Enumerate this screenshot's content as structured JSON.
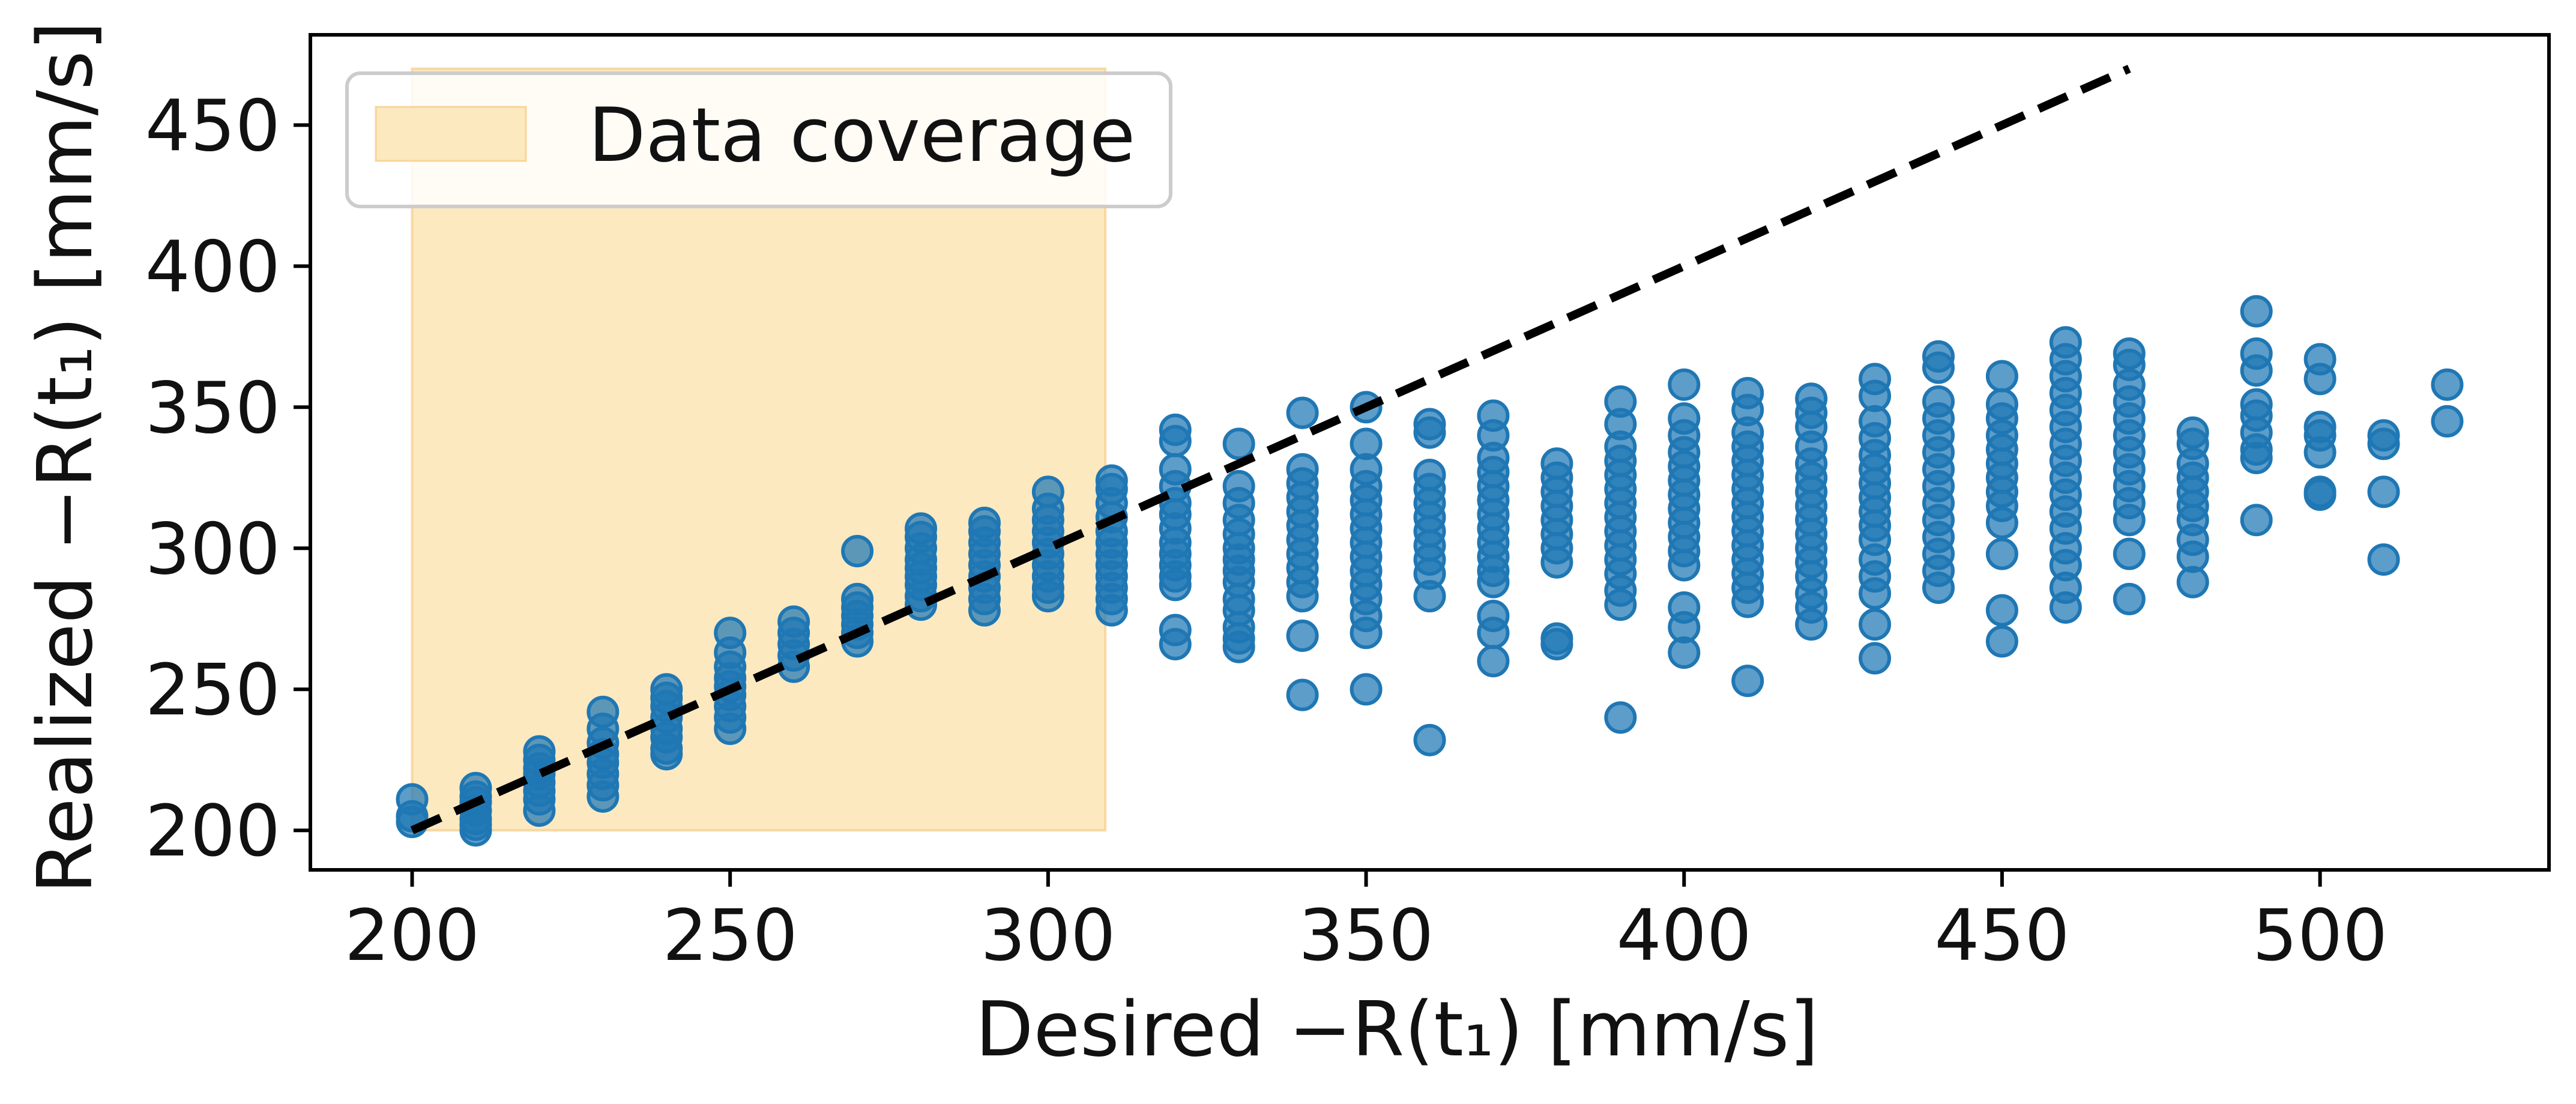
{
  "chart_data": {
    "type": "scatter",
    "xlabel": "Desired −R(t₁) [mm/s]",
    "ylabel": "Realized −R(t₁) [mm/s]",
    "xlim": [
      184,
      536
    ],
    "ylim": [
      186,
      482
    ],
    "xticks": [
      {
        "value": 200,
        "label": "200"
      },
      {
        "value": 250,
        "label": "250"
      },
      {
        "value": 300,
        "label": "300"
      },
      {
        "value": 350,
        "label": "350"
      },
      {
        "value": 400,
        "label": "400"
      },
      {
        "value": 450,
        "label": "450"
      },
      {
        "value": 500,
        "label": "500"
      }
    ],
    "yticks": [
      {
        "value": 200,
        "label": "200"
      },
      {
        "value": 250,
        "label": "250"
      },
      {
        "value": 300,
        "label": "300"
      },
      {
        "value": 350,
        "label": "350"
      },
      {
        "value": 400,
        "label": "400"
      },
      {
        "value": 450,
        "label": "450"
      }
    ],
    "grid": false,
    "legend": {
      "position": "top-left",
      "entries": [
        {
          "label": "Data coverage",
          "color": "#fde9c0"
        }
      ]
    },
    "coverage_region": {
      "x": [
        200,
        309
      ],
      "y": [
        200,
        470
      ],
      "color": "#fde9c0",
      "label": "Data coverage"
    },
    "reference_line": {
      "x": [
        200,
        470
      ],
      "y": [
        200,
        470
      ],
      "style": "dashed",
      "color": "#000000"
    },
    "scatter_color": "#1f77b4",
    "points": [
      {
        "x": 200,
        "ys": [
          211,
          205,
          203
        ]
      },
      {
        "x": 210,
        "ys": [
          215,
          212,
          210,
          207,
          204,
          202,
          200
        ]
      },
      {
        "x": 220,
        "ys": [
          228,
          225,
          222,
          220,
          217,
          214,
          211,
          207
        ]
      },
      {
        "x": 230,
        "ys": [
          242,
          236,
          231,
          227,
          224,
          220,
          216,
          212
        ]
      },
      {
        "x": 240,
        "ys": [
          250,
          247,
          244,
          240,
          236,
          233,
          229,
          227
        ]
      },
      {
        "x": 250,
        "ys": [
          270,
          263,
          258,
          254,
          251,
          248,
          244,
          240,
          236
        ]
      },
      {
        "x": 260,
        "ys": [
          274,
          270,
          266,
          262,
          258
        ]
      },
      {
        "x": 270,
        "ys": [
          299,
          282,
          279,
          276,
          273,
          270,
          267
        ]
      },
      {
        "x": 280,
        "ys": [
          307,
          304,
          300,
          296,
          293,
          290,
          287,
          283,
          280
        ]
      },
      {
        "x": 290,
        "ys": [
          309,
          306,
          302,
          298,
          294,
          290,
          286,
          282,
          278
        ]
      },
      {
        "x": 300,
        "ys": [
          320,
          314,
          310,
          306,
          302,
          298,
          294,
          290,
          286,
          283
        ]
      },
      {
        "x": 310,
        "ys": [
          324,
          321,
          316,
          311,
          306,
          302,
          298,
          294,
          290,
          286,
          282,
          278
        ]
      },
      {
        "x": 320,
        "ys": [
          342,
          338,
          328,
          322,
          316,
          312,
          307,
          302,
          298,
          294,
          290,
          287,
          271,
          266
        ]
      },
      {
        "x": 330,
        "ys": [
          337,
          322,
          316,
          310,
          305,
          300,
          296,
          292,
          288,
          282,
          278,
          272,
          268,
          265
        ]
      },
      {
        "x": 340,
        "ys": [
          348,
          328,
          323,
          318,
          313,
          308,
          303,
          298,
          293,
          288,
          283,
          269,
          248
        ]
      },
      {
        "x": 350,
        "ys": [
          350,
          337,
          328,
          322,
          317,
          312,
          307,
          302,
          297,
          292,
          287,
          282,
          276,
          270,
          250
        ]
      },
      {
        "x": 360,
        "ys": [
          344,
          341,
          326,
          321,
          316,
          311,
          306,
          301,
          296,
          291,
          283,
          232
        ]
      },
      {
        "x": 370,
        "ys": [
          347,
          340,
          332,
          327,
          322,
          317,
          312,
          307,
          302,
          297,
          292,
          288,
          276,
          270,
          260
        ]
      },
      {
        "x": 380,
        "ys": [
          330,
          325,
          320,
          315,
          310,
          305,
          300,
          295,
          268,
          266
        ]
      },
      {
        "x": 390,
        "ys": [
          352,
          344,
          336,
          331,
          326,
          321,
          316,
          311,
          306,
          301,
          296,
          291,
          285,
          280,
          240
        ]
      },
      {
        "x": 400,
        "ys": [
          358,
          346,
          340,
          334,
          329,
          324,
          319,
          314,
          309,
          304,
          299,
          294,
          279,
          272,
          263
        ]
      },
      {
        "x": 410,
        "ys": [
          355,
          349,
          341,
          336,
          331,
          326,
          321,
          316,
          311,
          306,
          301,
          296,
          291,
          286,
          281,
          253
        ]
      },
      {
        "x": 420,
        "ys": [
          353,
          348,
          343,
          336,
          330,
          325,
          320,
          315,
          310,
          305,
          300,
          295,
          290,
          284,
          279,
          273
        ]
      },
      {
        "x": 430,
        "ys": [
          360,
          354,
          345,
          339,
          333,
          328,
          323,
          318,
          313,
          308,
          303,
          296,
          290,
          284,
          273,
          261
        ]
      },
      {
        "x": 440,
        "ys": [
          368,
          364,
          352,
          346,
          340,
          334,
          328,
          322,
          316,
          310,
          304,
          298,
          292,
          286
        ]
      },
      {
        "x": 450,
        "ys": [
          361,
          351,
          346,
          340,
          335,
          330,
          325,
          320,
          315,
          309,
          298,
          278,
          267
        ]
      },
      {
        "x": 460,
        "ys": [
          373,
          367,
          361,
          355,
          349,
          343,
          337,
          331,
          325,
          319,
          313,
          307,
          300,
          294,
          286,
          279
        ]
      },
      {
        "x": 470,
        "ys": [
          369,
          365,
          358,
          352,
          346,
          340,
          334,
          328,
          322,
          316,
          310,
          298,
          282
        ]
      },
      {
        "x": 480,
        "ys": [
          341,
          337,
          330,
          325,
          320,
          315,
          310,
          303,
          297,
          288
        ]
      },
      {
        "x": 490,
        "ys": [
          384,
          369,
          363,
          351,
          347,
          341,
          335,
          332,
          310
        ]
      },
      {
        "x": 500,
        "ys": [
          367,
          360,
          343,
          340,
          334,
          320,
          319
        ]
      },
      {
        "x": 510,
        "ys": [
          340,
          337,
          320,
          296
        ]
      },
      {
        "x": 520,
        "ys": [
          358,
          345
        ]
      }
    ]
  }
}
